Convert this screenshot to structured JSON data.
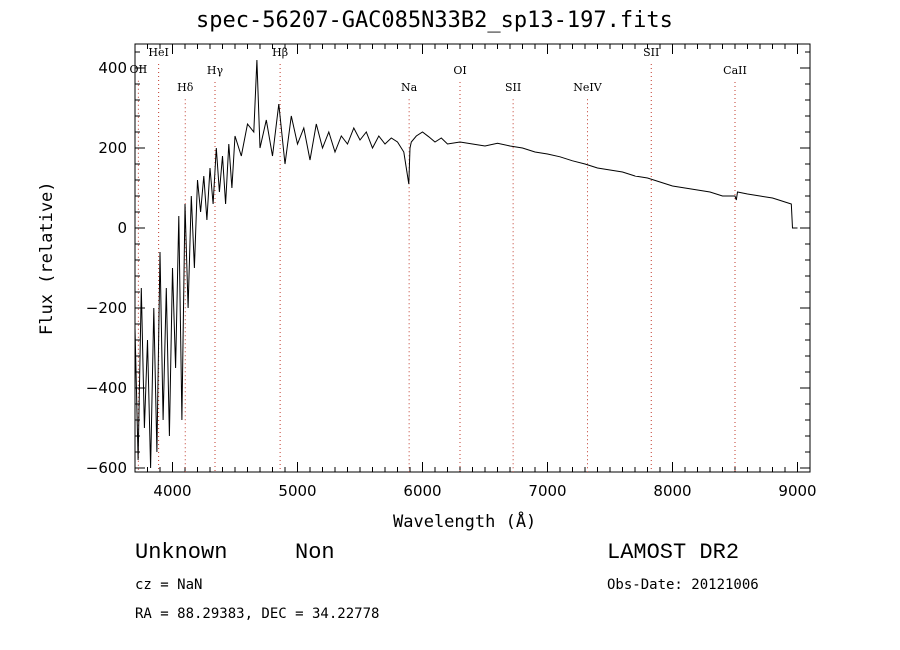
{
  "chart_data": {
    "type": "line",
    "title": "spec-56207-GAC085N33B2_sp13-197.fits",
    "xlabel": "Wavelength (Å)",
    "ylabel": "Flux (relative)",
    "xlim": [
      3700,
      9100
    ],
    "ylim": [
      -610,
      460
    ],
    "xticks": [
      4000,
      5000,
      6000,
      7000,
      8000,
      9000
    ],
    "xtick_labels": [
      "4000",
      "5000",
      "6000",
      "7000",
      "8000",
      "9000"
    ],
    "yticks": [
      -600,
      -400,
      -200,
      0,
      200,
      400
    ],
    "ytick_labels": [
      "−600",
      "−400",
      "−200",
      "0",
      "200",
      "400"
    ],
    "grid": false,
    "line_markers": [
      {
        "label": "OII",
        "wavelength": 3727,
        "label_flux": 388
      },
      {
        "label": "HeI",
        "wavelength": 3889,
        "label_flux": 430
      },
      {
        "label": "Hδ",
        "wavelength": 4102,
        "label_flux": 342
      },
      {
        "label": "Hγ",
        "wavelength": 4340,
        "label_flux": 385
      },
      {
        "label": "Hβ",
        "wavelength": 4861,
        "label_flux": 430
      },
      {
        "label": "Na",
        "wavelength": 5893,
        "label_flux": 342
      },
      {
        "label": "OI",
        "wavelength": 6300,
        "label_flux": 385
      },
      {
        "label": "SII",
        "wavelength": 6725,
        "label_flux": 342
      },
      {
        "label": "NeIV",
        "wavelength": 7320,
        "label_flux": 342
      },
      {
        "label": "SII",
        "wavelength": 7830,
        "label_flux": 430
      },
      {
        "label": "CaII",
        "wavelength": 8500,
        "label_flux": 385
      }
    ],
    "series": [
      {
        "x": [
          3700,
          3725,
          3750,
          3775,
          3800,
          3825,
          3850,
          3875,
          3900,
          3925,
          3950,
          3975,
          4000,
          4025,
          4050,
          4075,
          4100,
          4125,
          4150,
          4175,
          4200,
          4225,
          4250,
          4275,
          4300,
          4325,
          4350,
          4375,
          4400,
          4425,
          4450,
          4475,
          4500,
          4550,
          4600,
          4650,
          4675,
          4700,
          4750,
          4800,
          4850,
          4900,
          4950,
          5000,
          5050,
          5100,
          5150,
          5200,
          5250,
          5300,
          5350,
          5400,
          5450,
          5500,
          5550,
          5600,
          5650,
          5700,
          5750,
          5800,
          5850,
          5890,
          5900,
          5910,
          5950,
          6000,
          6050,
          6100,
          6150,
          6200,
          6300,
          6400,
          6500,
          6600,
          6700,
          6800,
          6900,
          7000,
          7100,
          7200,
          7300,
          7400,
          7500,
          7600,
          7700,
          7800,
          7900,
          8000,
          8100,
          8200,
          8300,
          8400,
          8500,
          8510,
          8520,
          8600,
          8700,
          8800,
          8850,
          8900,
          8950,
          8960,
          8970,
          9000
        ],
        "y": [
          -250,
          -580,
          -150,
          -500,
          -280,
          -600,
          -200,
          -560,
          -60,
          -480,
          -150,
          -520,
          -100,
          -350,
          30,
          -480,
          60,
          -200,
          80,
          -100,
          120,
          40,
          130,
          20,
          150,
          60,
          200,
          90,
          180,
          60,
          210,
          100,
          230,
          180,
          260,
          240,
          420,
          200,
          270,
          180,
          310,
          160,
          280,
          210,
          250,
          170,
          260,
          200,
          240,
          190,
          230,
          210,
          250,
          220,
          240,
          200,
          230,
          210,
          225,
          215,
          190,
          110,
          200,
          215,
          230,
          240,
          228,
          215,
          225,
          210,
          215,
          210,
          205,
          212,
          205,
          200,
          190,
          185,
          178,
          168,
          160,
          150,
          145,
          140,
          130,
          125,
          115,
          105,
          100,
          95,
          90,
          80,
          80,
          70,
          90,
          85,
          80,
          75,
          70,
          65,
          60,
          0,
          0,
          0
        ]
      }
    ]
  },
  "footer": {
    "classification": "Unknown",
    "subclass": "Non",
    "survey": "LAMOST DR2",
    "cz": "cz = NaN",
    "obs_date": "Obs-Date: 20121006",
    "coords": "RA =  88.29383, DEC =  34.22778"
  }
}
